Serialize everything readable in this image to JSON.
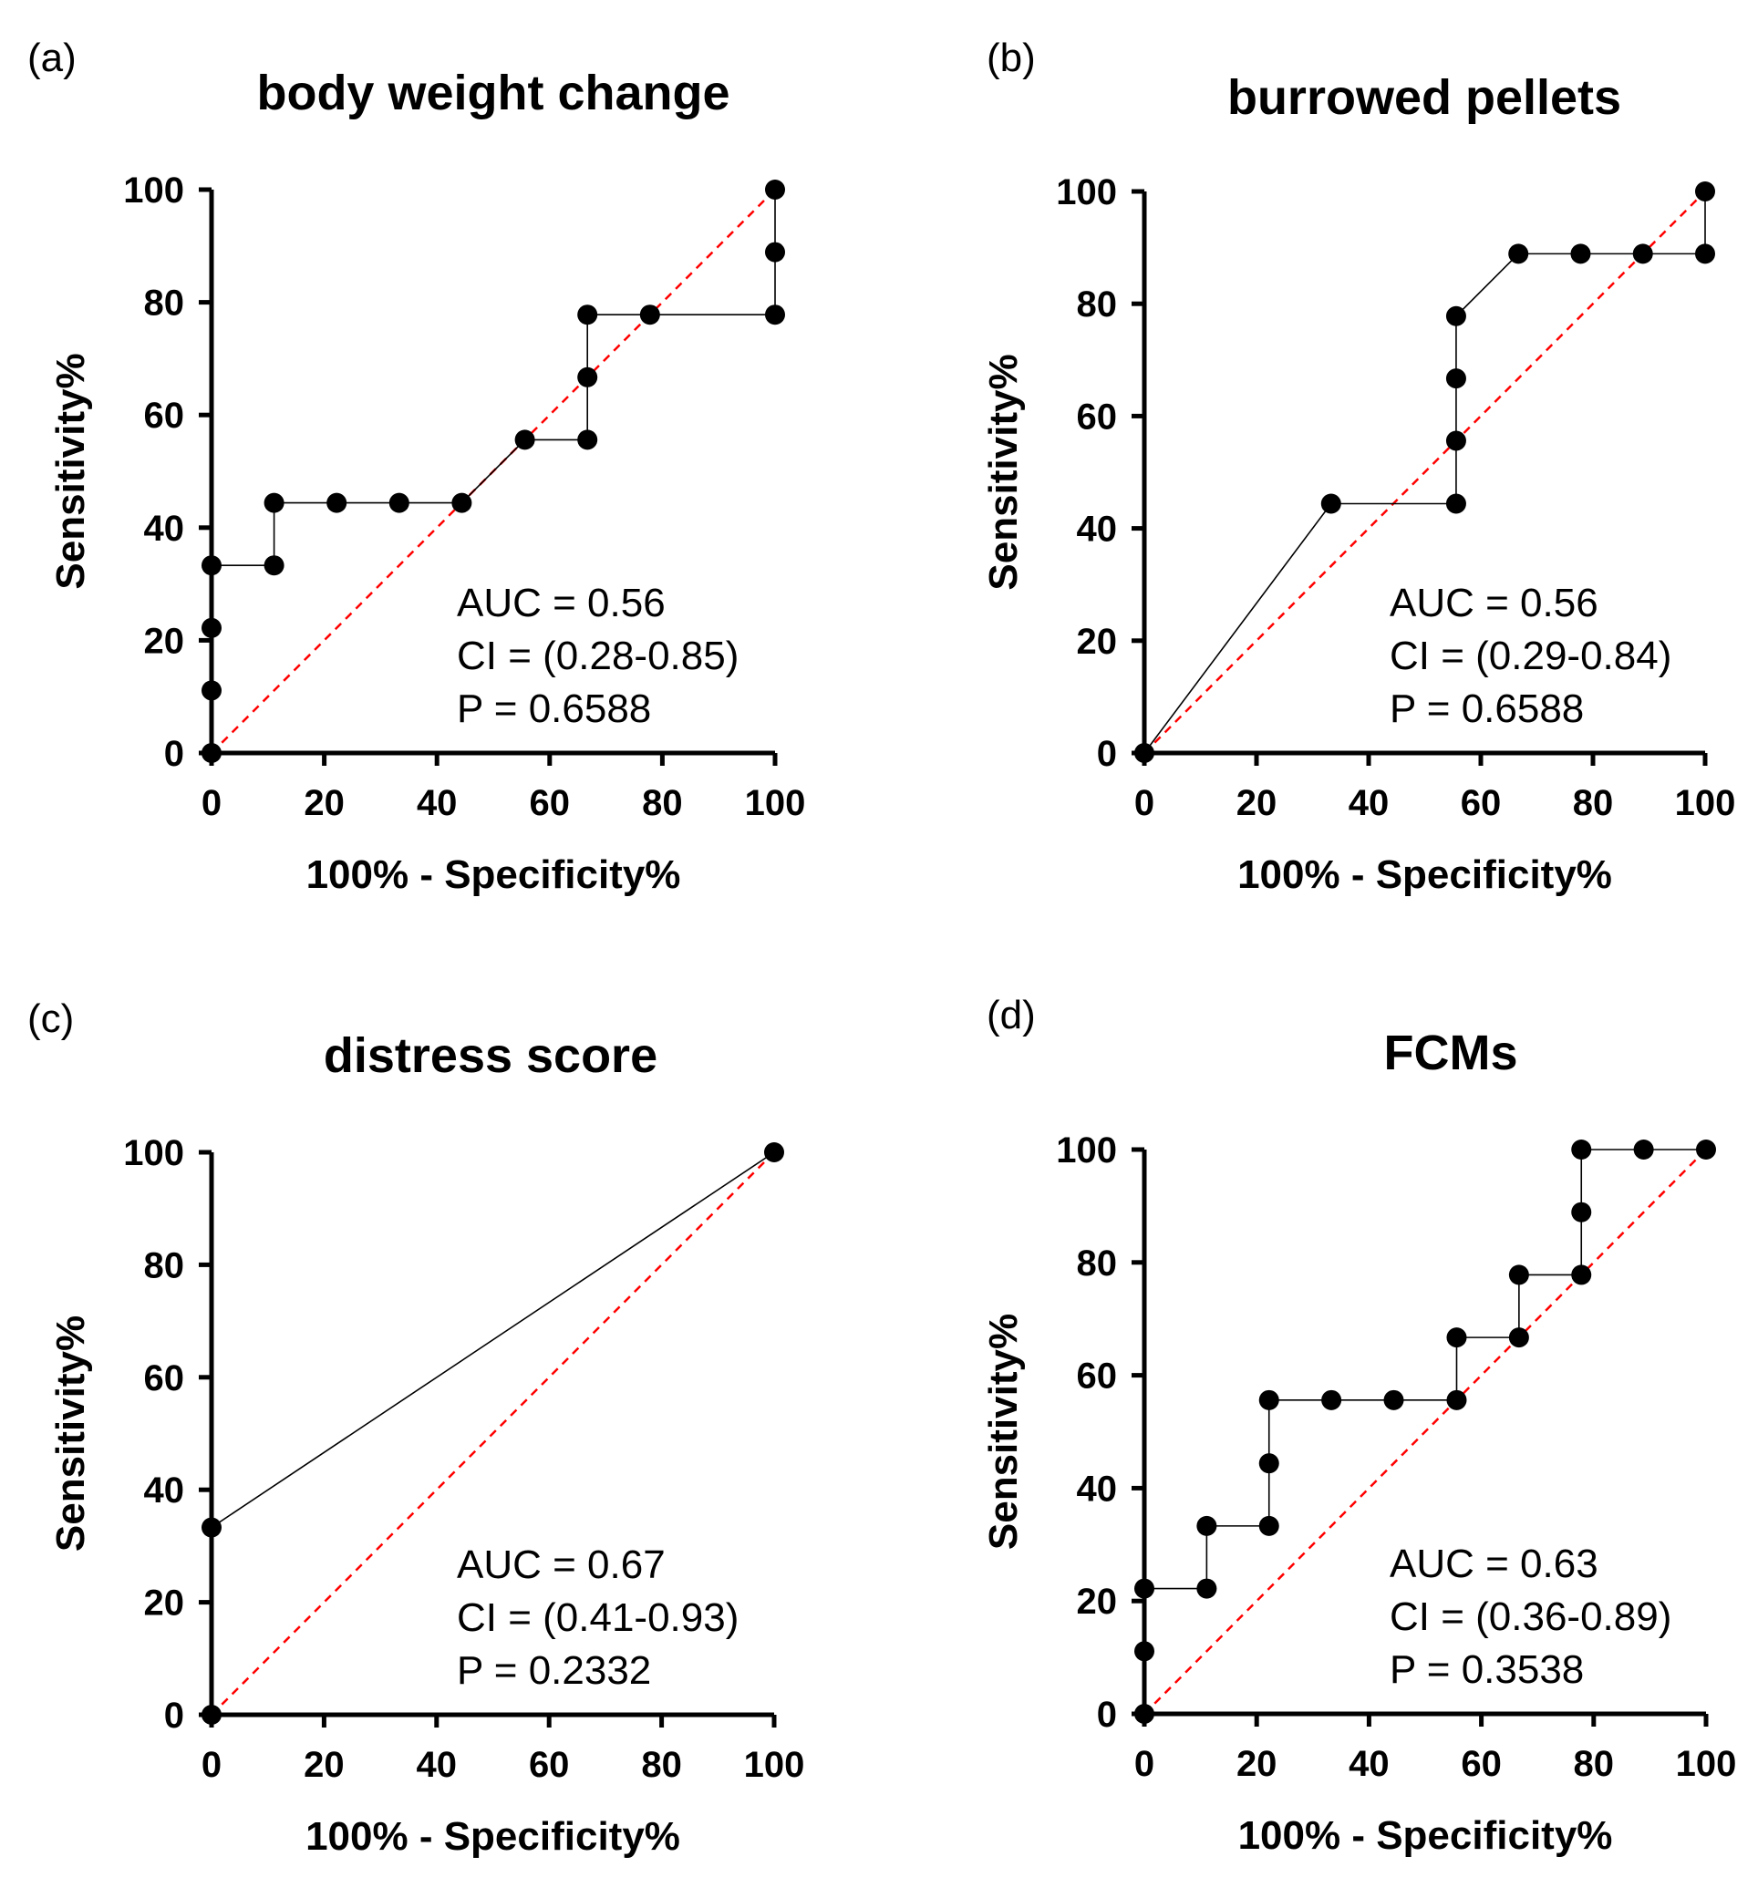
{
  "chart_data": [
    {
      "type": "line",
      "panel_label": "(a)",
      "title": "body weight change",
      "xlabel": "100% - Specificity%",
      "ylabel": "Sensitivity%",
      "xlim": [
        0,
        100
      ],
      "ylim": [
        0,
        100
      ],
      "xticks": [
        "0",
        "20",
        "40",
        "60",
        "80",
        "100"
      ],
      "yticks": [
        "0",
        "20",
        "40",
        "60",
        "80",
        "100"
      ],
      "series": [
        {
          "name": "ROC",
          "x": [
            0,
            0,
            0,
            0,
            11.1,
            11.1,
            22.2,
            33.3,
            44.4,
            55.6,
            66.7,
            66.7,
            66.7,
            77.8,
            100,
            100,
            100
          ],
          "y": [
            0,
            11.1,
            22.2,
            33.3,
            33.3,
            44.4,
            44.4,
            44.4,
            44.4,
            55.6,
            55.6,
            66.7,
            77.8,
            77.8,
            77.8,
            88.9,
            100
          ]
        },
        {
          "name": "reference",
          "x": [
            0,
            100
          ],
          "y": [
            0,
            100
          ]
        }
      ],
      "annotation": [
        "AUC = 0.56",
        "CI = (0.28-0.85)",
        "P = 0.6588"
      ]
    },
    {
      "type": "line",
      "panel_label": "(b)",
      "title": "burrowed pellets",
      "xlabel": "100% - Specificity%",
      "ylabel": "Sensitivity%",
      "xlim": [
        0,
        100
      ],
      "ylim": [
        0,
        100
      ],
      "xticks": [
        "0",
        "20",
        "40",
        "60",
        "80",
        "100"
      ],
      "yticks": [
        "0",
        "20",
        "40",
        "60",
        "80",
        "100"
      ],
      "series": [
        {
          "name": "ROC",
          "x": [
            0,
            33.3,
            55.6,
            55.6,
            55.6,
            55.6,
            66.7,
            77.8,
            88.9,
            100,
            100
          ],
          "y": [
            0,
            44.4,
            44.4,
            55.6,
            66.7,
            77.8,
            88.9,
            88.9,
            88.9,
            88.9,
            100
          ]
        },
        {
          "name": "reference",
          "x": [
            0,
            100
          ],
          "y": [
            0,
            100
          ]
        }
      ],
      "annotation": [
        "AUC = 0.56",
        "CI = (0.29-0.84)",
        "P = 0.6588"
      ]
    },
    {
      "type": "line",
      "panel_label": "(c)",
      "title": "distress score",
      "xlabel": "100% - Specificity%",
      "ylabel": "Sensitivity%",
      "xlim": [
        0,
        100
      ],
      "ylim": [
        0,
        100
      ],
      "xticks": [
        "0",
        "20",
        "40",
        "60",
        "80",
        "100"
      ],
      "yticks": [
        "0",
        "20",
        "40",
        "60",
        "80",
        "100"
      ],
      "series": [
        {
          "name": "ROC",
          "x": [
            0,
            0,
            100
          ],
          "y": [
            0,
            33.3,
            100
          ]
        },
        {
          "name": "reference",
          "x": [
            0,
            100
          ],
          "y": [
            0,
            100
          ]
        }
      ],
      "annotation": [
        "AUC = 0.67",
        "CI = (0.41-0.93)",
        "P = 0.2332"
      ]
    },
    {
      "type": "line",
      "panel_label": "(d)",
      "title": "FCMs",
      "xlabel": "100% - Specificity%",
      "ylabel": "Sensitivity%",
      "xlim": [
        0,
        100
      ],
      "ylim": [
        0,
        100
      ],
      "xticks": [
        "0",
        "20",
        "40",
        "60",
        "80",
        "100"
      ],
      "yticks": [
        "0",
        "20",
        "40",
        "60",
        "80",
        "100"
      ],
      "series": [
        {
          "name": "ROC",
          "x": [
            0,
            0,
            0,
            11.1,
            11.1,
            22.2,
            22.2,
            22.2,
            33.3,
            44.4,
            55.6,
            55.6,
            66.7,
            66.7,
            77.8,
            77.8,
            77.8,
            88.9,
            100
          ],
          "y": [
            0,
            11.1,
            22.2,
            22.2,
            33.3,
            33.3,
            44.4,
            55.6,
            55.6,
            55.6,
            55.6,
            66.7,
            66.7,
            77.8,
            77.8,
            88.9,
            100,
            100,
            100
          ]
        },
        {
          "name": "reference",
          "x": [
            0,
            100
          ],
          "y": [
            0,
            100
          ]
        }
      ],
      "annotation": [
        "AUC = 0.63",
        "CI = (0.36-0.89)",
        "P = 0.3538"
      ]
    }
  ]
}
